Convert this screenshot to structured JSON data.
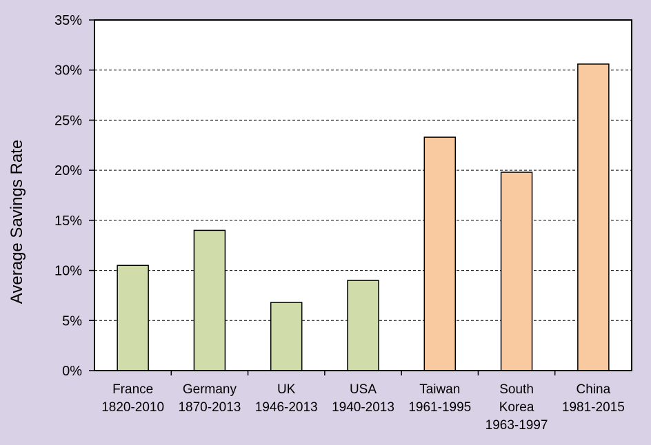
{
  "chart_data": {
    "type": "bar",
    "ylabel": "Average Savings Rate",
    "xlabel": "",
    "ylim": [
      0,
      35
    ],
    "yticks": [
      0,
      5,
      10,
      15,
      20,
      25,
      30,
      35
    ],
    "ytick_labels": [
      "0%",
      "5%",
      "10%",
      "15%",
      "20%",
      "25%",
      "30%",
      "35%"
    ],
    "grid": "y-dashed",
    "categories": [
      [
        "France",
        "1820-2010"
      ],
      [
        "Germany",
        "1870-2013"
      ],
      [
        "UK",
        "1946-2013"
      ],
      [
        "USA",
        "1940-2013"
      ],
      [
        "Taiwan",
        "1961-1995"
      ],
      [
        "South",
        "Korea",
        "1963-1997"
      ],
      [
        "China",
        "1981-2015"
      ]
    ],
    "values": [
      10.5,
      14.0,
      6.8,
      9.0,
      23.3,
      19.8,
      30.6
    ],
    "bar_colors": [
      "#d0ddab",
      "#d0ddab",
      "#d0ddab",
      "#d0ddab",
      "#f9c9a0",
      "#f9c9a0",
      "#f9c9a0"
    ]
  }
}
